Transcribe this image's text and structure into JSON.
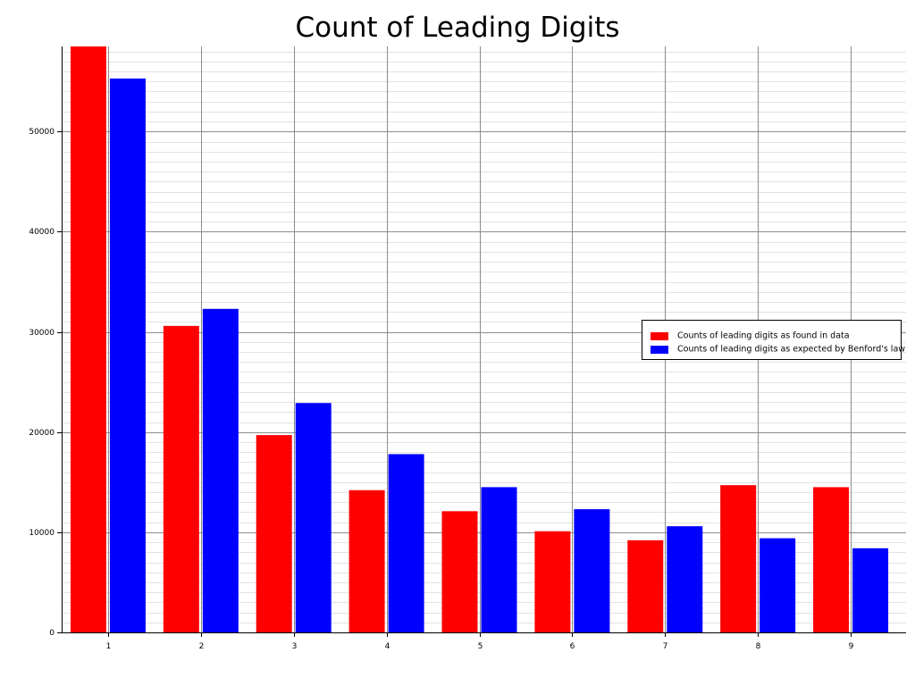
{
  "chart_data": {
    "type": "bar",
    "title": "Count of Leading Digits",
    "xlabel": "",
    "ylabel": "",
    "categories": [
      "1",
      "2",
      "3",
      "4",
      "5",
      "6",
      "7",
      "8",
      "9"
    ],
    "series": [
      {
        "name": "Counts of leading digits as found in data",
        "color": "#ff0000",
        "values": [
          58500,
          30600,
          19700,
          14200,
          12100,
          10100,
          9200,
          14700,
          14500
        ]
      },
      {
        "name": "Counts of leading digits as expected by Benford's law",
        "color": "#0000ff",
        "values": [
          55300,
          32300,
          22900,
          17800,
          14500,
          12300,
          10600,
          9400,
          8400
        ]
      }
    ],
    "ylim": [
      0,
      58500
    ],
    "y_ticks": [
      0,
      10000,
      20000,
      30000,
      40000,
      50000
    ],
    "y_minor_step": 1000,
    "grid": true,
    "legend_position": "right"
  }
}
